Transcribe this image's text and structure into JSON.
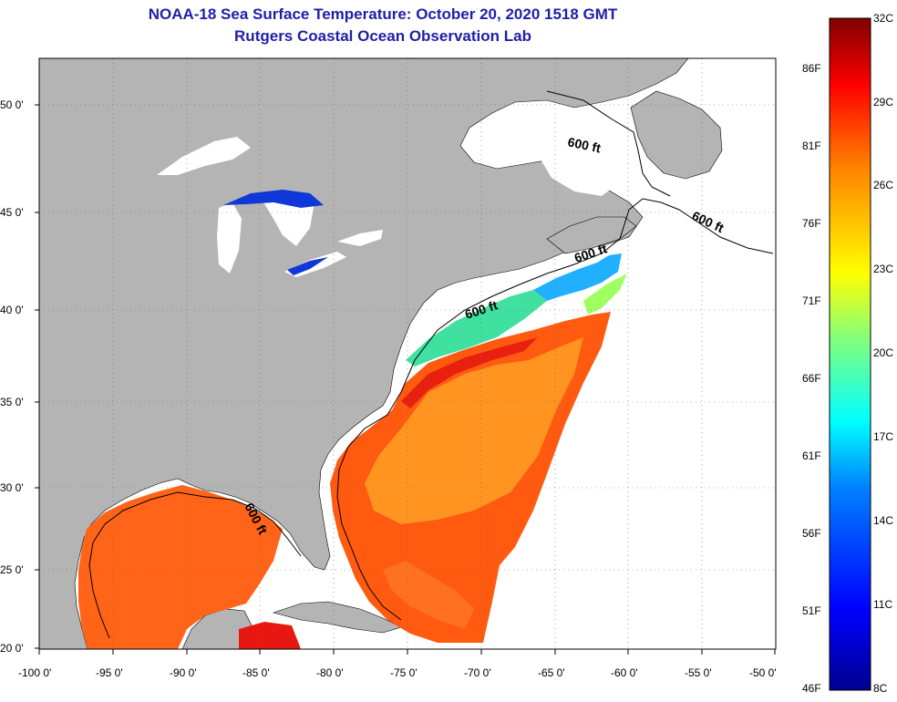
{
  "header": {
    "title": "NOAA-18 Sea Surface Temperature:  October 20, 2020 1518 GMT",
    "subtitle": "Rutgers Coastal Ocean Observation Lab"
  },
  "axes": {
    "lat_labels": [
      "50 0'",
      "45 0'",
      "40 0'",
      "35 0'",
      "30 0'",
      "25 0'",
      "20 0'"
    ],
    "lon_labels": [
      "-100 0'",
      "-95 0'",
      "-90 0'",
      "-85 0'",
      "-80 0'",
      "-75 0'",
      "-70 0'",
      "-65 0'",
      "-60 0'",
      "-55 0'",
      "-50 0'"
    ]
  },
  "contour_labels": [
    "600 ft",
    "600 ft",
    "600 ft",
    "600 ft",
    "600 ft"
  ],
  "colorbar": {
    "celsius_labels": [
      "32C",
      "29C",
      "26C",
      "23C",
      "20C",
      "17C",
      "14C",
      "11C",
      "8C"
    ],
    "fahrenheit_labels": [
      "86F",
      "81F",
      "76F",
      "71F",
      "66F",
      "61F",
      "56F",
      "51F",
      "46F"
    ],
    "colors": [
      "#00008f",
      "#0000ff",
      "#0080ff",
      "#00ffff",
      "#80ff80",
      "#ffff00",
      "#ff8000",
      "#ff0000",
      "#800000"
    ]
  },
  "colors": {
    "land": "#b4b4b4",
    "title": "#1f1fa8",
    "no_data": "#ffffff"
  }
}
